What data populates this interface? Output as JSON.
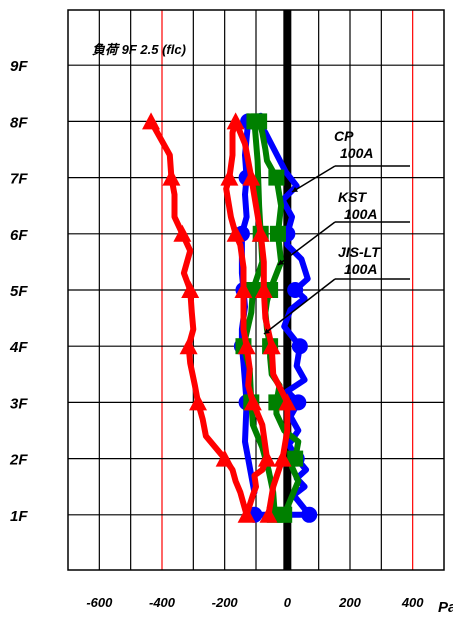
{
  "chart_data": {
    "type": "line",
    "title": "負荷 9F 2.5 (flc)",
    "x_unit": "Pa",
    "xlim": [
      -700,
      500
    ],
    "x_ticks": [
      -600,
      -400,
      -200,
      0,
      200,
      400
    ],
    "x_tick_labels": [
      "-600",
      "-400",
      "-200",
      "0",
      "200",
      "400"
    ],
    "red_reference_lines": [
      -400,
      400
    ],
    "zero_line": 0,
    "categories": [
      "1F",
      "2F",
      "3F",
      "4F",
      "5F",
      "6F",
      "7F",
      "8F",
      "9F"
    ],
    "grid": true,
    "series": [
      {
        "name": "CP 100A",
        "color": "#0000ff",
        "marker": "circle",
        "x": [
          -105,
          70,
          20,
          55,
          30,
          60,
          30,
          5,
          35,
          10,
          35,
          0,
          55,
          30,
          40,
          -10,
          10,
          55,
          25,
          65,
          45,
          0,
          0,
          15,
          -15,
          30,
          -5,
          -70,
          -100,
          -85,
          -125,
          -130,
          -135,
          -130,
          -135,
          -130,
          -145,
          -145,
          -145,
          -140,
          -135,
          -145,
          -145,
          -140,
          -130,
          -135,
          -105
        ],
        "floors": [
          1.0,
          1.0,
          1.35,
          1.5,
          1.65,
          1.8,
          2.0,
          2.25,
          2.5,
          2.75,
          3.0,
          3.2,
          3.4,
          3.65,
          4.0,
          4.35,
          4.65,
          4.85,
          5.0,
          5.2,
          5.55,
          5.8,
          6.0,
          6.3,
          6.6,
          6.85,
          7.1,
          7.8,
          8.0,
          8.1,
          8.0,
          7.7,
          7.4,
          7.0,
          6.7,
          6.3,
          6.0,
          5.7,
          5.3,
          5.0,
          4.7,
          4.3,
          4.0,
          3.7,
          3.0,
          2.3,
          1.4
        ]
      },
      {
        "name": "KST 100A",
        "color": "#008000",
        "marker": "square",
        "x": [
          -10,
          20,
          35,
          15,
          25,
          35,
          -10,
          -35,
          -35,
          -25,
          -50,
          -55,
          -55,
          -65,
          -70,
          -65,
          -55,
          -20,
          -30,
          -20,
          -35,
          -65,
          -70,
          -80,
          -90,
          -105,
          -95,
          -90,
          -85,
          -80,
          -110,
          -115,
          -140,
          -120,
          -115,
          -110,
          -80,
          -60,
          -45,
          -40
        ],
        "floors": [
          1.0,
          1.4,
          1.6,
          1.85,
          2.0,
          2.3,
          2.5,
          2.8,
          3.0,
          3.3,
          3.5,
          3.8,
          4.0,
          4.3,
          4.6,
          4.8,
          5.0,
          5.5,
          6.0,
          6.5,
          7.0,
          7.3,
          7.5,
          7.8,
          8.0,
          8.0,
          7.3,
          6.5,
          6.0,
          5.5,
          5.0,
          4.6,
          4.0,
          3.6,
          3.0,
          2.6,
          2.2,
          1.8,
          1.4,
          1.0
        ]
      },
      {
        "name": "JIS-LT 100A",
        "color": "#ff0000",
        "marker": "triangle",
        "x": [
          -435,
          -375,
          -370,
          -360,
          -360,
          -335,
          -310,
          -330,
          -310,
          -305,
          -300,
          -315,
          -310,
          -295,
          -285,
          -270,
          -260,
          -200,
          -175,
          -165,
          -150,
          -130,
          -110,
          -100,
          -105,
          -80,
          -65,
          -80,
          -110,
          -125,
          -120,
          -130,
          -140,
          -140,
          -140,
          -140,
          -150,
          -165,
          -180,
          -195,
          -185,
          -175,
          -175,
          -165,
          -135,
          -115,
          -100,
          -85,
          -75,
          -75,
          -70,
          -50,
          -45,
          0,
          0,
          -15,
          -45,
          -60
        ],
        "floors": [
          8.0,
          7.4,
          7.0,
          6.7,
          6.3,
          6.0,
          5.7,
          5.3,
          5.0,
          4.6,
          4.3,
          4.0,
          3.7,
          3.3,
          3.0,
          2.7,
          2.4,
          2.0,
          1.8,
          1.6,
          1.4,
          1.0,
          1.35,
          1.5,
          1.7,
          1.8,
          2.0,
          2.6,
          3.0,
          3.3,
          3.6,
          4.0,
          4.3,
          4.7,
          5.0,
          5.4,
          5.8,
          6.0,
          6.3,
          6.8,
          7.0,
          7.4,
          7.8,
          8.0,
          7.6,
          7.0,
          6.5,
          6.0,
          5.5,
          5.0,
          4.5,
          4.0,
          3.5,
          3.0,
          2.5,
          2.0,
          1.5,
          1.0
        ]
      }
    ],
    "annotations": [
      {
        "lines": [
          "CP",
          "100A"
        ],
        "series": "CP 100A"
      },
      {
        "lines": [
          "KST",
          "100A"
        ],
        "series": "KST 100A"
      },
      {
        "lines": [
          "JIS-LT",
          "100A"
        ],
        "series": "JIS-LT 100A"
      }
    ],
    "legend_position": "right"
  }
}
